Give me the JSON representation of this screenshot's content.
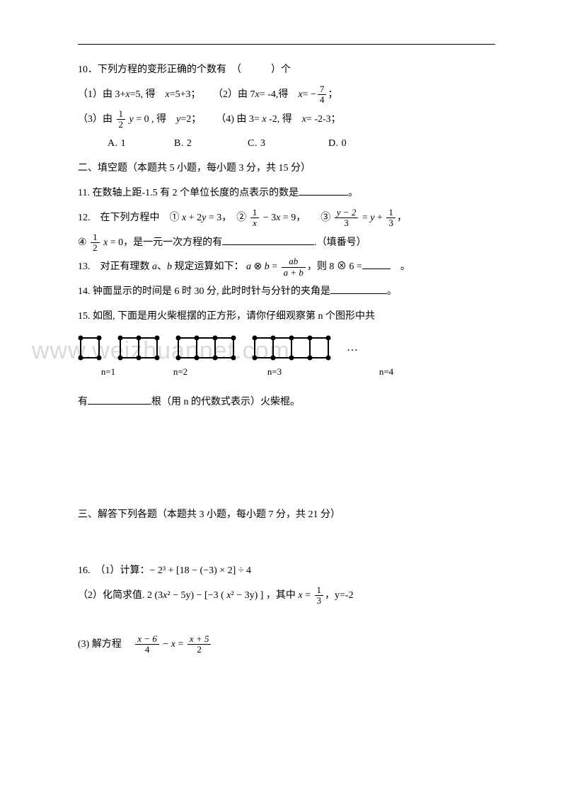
{
  "q10": {
    "stem": "10．下列方程的变形正确的个数有　（　　　）个",
    "p1a": "（1）由 3+",
    "p1b": "=5, 得　",
    "p1c": "=5+3；",
    "p2a": "（2）由 7",
    "p2b": "= -4,得　",
    "p2c": "=",
    "p2frac_num": "7",
    "p2frac_den": "4",
    "p3a": "（3）由 ",
    "p3b": " = 0 , 得　",
    "p3c": "=2；",
    "p4a": "（4) 由 3= ",
    "p4b": " -2, 得　",
    "p4c": "= -2-3；",
    "half": "1",
    "two": "2",
    "optA": "A. 1",
    "optB": "B. 2",
    "optC": "C. 3",
    "optD": "D. 0",
    "optA_w": 90,
    "optB_w": 100,
    "optC_w": 110,
    "optD_w": 80
  },
  "sec2": "二、填空题（本题共 5 小题，每小题 3 分，共 15 分）",
  "q11": {
    "text_a": "11. 在数轴上距-1.5 有 2 个单位长度的点表示的数是",
    "text_b": "。",
    "blank": 70
  },
  "q12": {
    "a": "12.　在下列方程中　① ",
    "eq1": " + 2",
    " eq1b": " = 3，　② ",
    "f2n": "1",
    "f2d": "x",
    "eq2": " − 3",
    "eq2b": " = 9，　　③ ",
    "f3n": "y − 2",
    "f3d": "3",
    "eq3": " = ",
    "f3bn": "1",
    "f3bd": "3",
    "eq3b": "，",
    "d1": "④ ",
    "f4n": "1",
    "f4d": "2",
    "d2": " = 0，是一元一次方程的有",
    "d3": ".（填番号）",
    "blankw": 130
  },
  "q13": {
    "a": "13.　对正有理数 ",
    "b": "、",
    "c": " 规定运算如下：",
    "d": " ⊗ ",
    "e": " = ",
    "fn": "ab",
    "fd": "a + b",
    "f": "，则 8 ⊗ 6 =",
    "g": "　。",
    "blankw": 40
  },
  "q14": {
    "a": "14. 钟面显示的时间是 6 时 30 分, 此时时针与分针的夹角是",
    "b": "。",
    "blankw": 80
  },
  "q15": {
    "a": "15. 如图, 下面是用火柴棍摆的正方形，请你仔细观察第 n 个图形中共",
    "b": "有",
    "c": "根（用 n 的代数式表示）火柴棍。",
    "blankw": 90,
    "captions": [
      "n=1",
      "n=2",
      "n=3",
      "n=4"
    ],
    "cap_w": [
      86,
      118,
      148,
      168
    ],
    "dots": "…"
  },
  "watermark": "www.weizhuannet.com",
  "sec3": "三、解答下列各题（本题共 3 小题，每小题 7 分，共 21 分）",
  "q16": {
    "p1": "16.　（1）计算：− 2³ + [18 − (−3) × 2] ÷ 4",
    "p2a": "（2）化简求值. 2 (3",
    "p2b": "² − 5y) − [−3 ( ",
    "p2c": "² − 3y) ]  ，其中 ",
    "p2d": " = ",
    "fracn": "1",
    "fracd": "3",
    "p2e": "，y=-2",
    "p3a": "(3) 解方程　",
    "f1n": "x − 6",
    "f1d": "4",
    "mid": " − ",
    "eq": " = ",
    "f2n": "x + 5",
    "f2d": "2"
  },
  "svg": {
    "dot_r": 3.5,
    "stroke": "#000",
    "stroke_w": 2,
    "cell": 26,
    "h": 28
  }
}
